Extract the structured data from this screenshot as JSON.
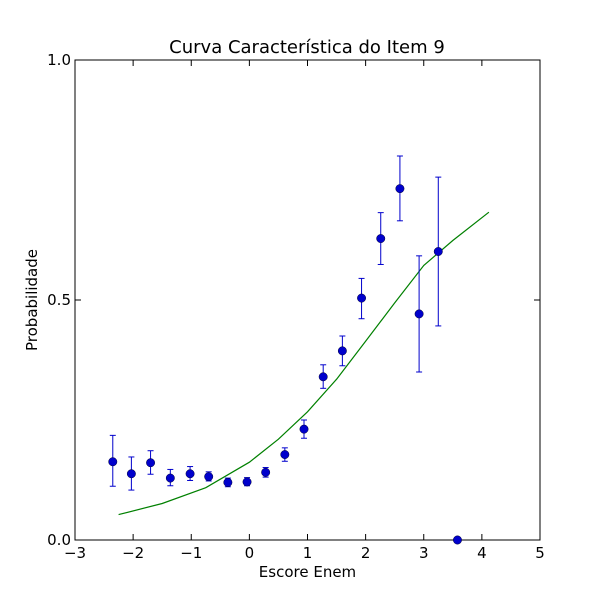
{
  "chart_data": {
    "type": "scatter",
    "title": "Curva Característica do Item 9",
    "xlabel": "Escore Enem",
    "ylabel": "Probabilidade",
    "xlim": [
      -3,
      5
    ],
    "ylim": [
      0,
      1
    ],
    "grid": false,
    "xticks": [
      -3,
      -2,
      -1,
      0,
      1,
      2,
      3,
      4,
      5
    ],
    "xtick_labels": [
      "−3",
      "−2",
      "−1",
      "0",
      "1",
      "2",
      "3",
      "4",
      "5"
    ],
    "yticks": [
      0,
      0.5,
      1
    ],
    "ytick_labels": [
      "0.0",
      "0.5",
      "1.0"
    ],
    "colors": {
      "points": "#0000cc",
      "errorbars": "#0000cc",
      "curve": "#008000"
    },
    "points": [
      {
        "x": -2.35,
        "y": 0.163,
        "ylow": 0.112,
        "yhigh": 0.218
      },
      {
        "x": -2.03,
        "y": 0.138,
        "ylow": 0.104,
        "yhigh": 0.173
      },
      {
        "x": -1.7,
        "y": 0.161,
        "ylow": 0.137,
        "yhigh": 0.186
      },
      {
        "x": -1.36,
        "y": 0.129,
        "ylow": 0.113,
        "yhigh": 0.147
      },
      {
        "x": -1.02,
        "y": 0.138,
        "ylow": 0.124,
        "yhigh": 0.153
      },
      {
        "x": -0.7,
        "y": 0.132,
        "ylow": 0.123,
        "yhigh": 0.142
      },
      {
        "x": -0.37,
        "y": 0.12,
        "ylow": 0.111,
        "yhigh": 0.129
      },
      {
        "x": -0.04,
        "y": 0.121,
        "ylow": 0.113,
        "yhigh": 0.13
      },
      {
        "x": 0.28,
        "y": 0.141,
        "ylow": 0.131,
        "yhigh": 0.151
      },
      {
        "x": 0.61,
        "y": 0.178,
        "ylow": 0.164,
        "yhigh": 0.192
      },
      {
        "x": 0.94,
        "y": 0.231,
        "ylow": 0.212,
        "yhigh": 0.25
      },
      {
        "x": 1.27,
        "y": 0.34,
        "ylow": 0.316,
        "yhigh": 0.365
      },
      {
        "x": 1.6,
        "y": 0.394,
        "ylow": 0.363,
        "yhigh": 0.425
      },
      {
        "x": 1.93,
        "y": 0.504,
        "ylow": 0.461,
        "yhigh": 0.545
      },
      {
        "x": 2.26,
        "y": 0.628,
        "ylow": 0.574,
        "yhigh": 0.682
      },
      {
        "x": 2.59,
        "y": 0.732,
        "ylow": 0.665,
        "yhigh": 0.8
      },
      {
        "x": 2.92,
        "y": 0.471,
        "ylow": 0.35,
        "yhigh": 0.592
      },
      {
        "x": 3.25,
        "y": 0.601,
        "ylow": 0.446,
        "yhigh": 0.756
      },
      {
        "x": 3.58,
        "y": 0.0,
        "ylow": 0.0,
        "yhigh": 0.0
      }
    ],
    "curve": {
      "x": [
        -2.25,
        -1.5,
        -0.75,
        0,
        0.5,
        1,
        1.5,
        2,
        2.5,
        3,
        3.5,
        4.12
      ],
      "y": [
        0.053,
        0.076,
        0.109,
        0.162,
        0.21,
        0.267,
        0.335,
        0.414,
        0.494,
        0.572,
        0.624,
        0.683
      ]
    }
  }
}
